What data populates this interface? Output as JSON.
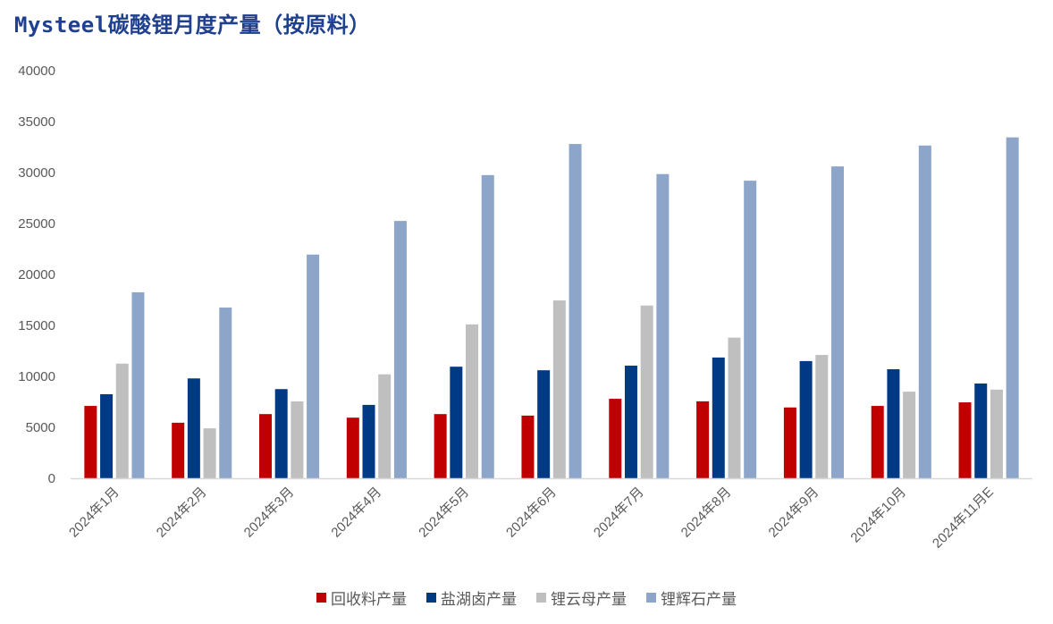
{
  "title": "Mysteel碳酸锂月度产量（按原料）",
  "chart_data": {
    "type": "bar",
    "title": "Mysteel碳酸锂月度产量（按原料）",
    "xlabel": "",
    "ylabel": "",
    "ylim": [
      0,
      40000
    ],
    "yticks": [
      0,
      5000,
      10000,
      15000,
      20000,
      25000,
      30000,
      35000,
      40000
    ],
    "grid": false,
    "legend_position": "bottom",
    "categories": [
      "2024年1月",
      "2024年2月",
      "2024年3月",
      "2024年4月",
      "2024年5月",
      "2024年6月",
      "2024年7月",
      "2024年8月",
      "2024年9月",
      "2024年10月",
      "2024年11月E"
    ],
    "series": [
      {
        "name": "回收料产量",
        "color": "#c00000",
        "values": [
          7100,
          5450,
          6300,
          5950,
          6300,
          6150,
          7800,
          7550,
          6950,
          7100,
          7450
        ]
      },
      {
        "name": "盐湖卤产量",
        "color": "#003a84",
        "values": [
          8250,
          9800,
          8750,
          7200,
          10950,
          10600,
          11050,
          11850,
          11500,
          10700,
          9300
        ]
      },
      {
        "name": "锂云母产量",
        "color": "#bfbfbf",
        "values": [
          11250,
          4900,
          7550,
          10200,
          15100,
          17450,
          16950,
          13800,
          12100,
          8500,
          8700
        ]
      },
      {
        "name": "锂辉石产量",
        "color": "#8ca5c8",
        "values": [
          18250,
          16750,
          21950,
          25250,
          29750,
          32800,
          29850,
          29200,
          30600,
          32650,
          33450
        ]
      }
    ]
  },
  "legend": [
    {
      "label": "回收料产量",
      "color": "#c00000"
    },
    {
      "label": "盐湖卤产量",
      "color": "#003a84"
    },
    {
      "label": "锂云母产量",
      "color": "#bfbfbf"
    },
    {
      "label": "锂辉石产量",
      "color": "#8ca5c8"
    }
  ]
}
